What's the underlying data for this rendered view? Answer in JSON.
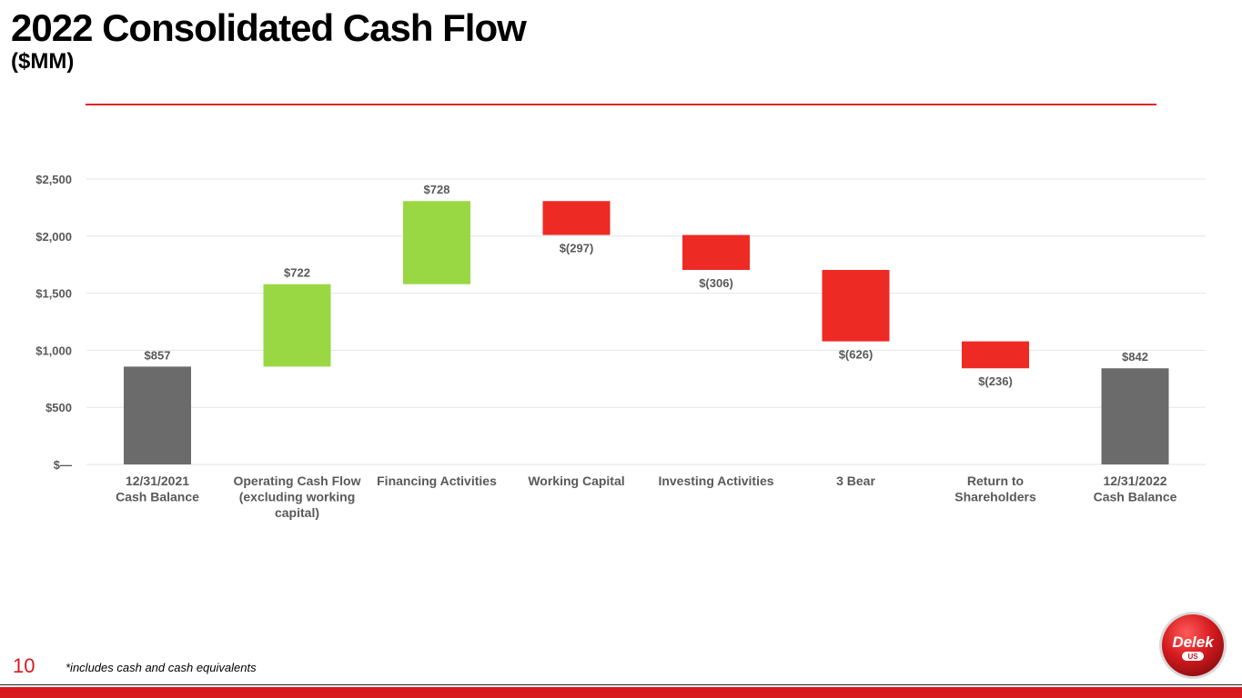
{
  "slide": {
    "title": "2022 Consolidated Cash Flow",
    "subtitle": "($MM)",
    "page_number": "10",
    "footnote": "*includes cash and cash equivalents",
    "logo_text": "Delek",
    "logo_subtext": "US"
  },
  "colors": {
    "accent": "#e0252a",
    "total": "#6b6b6b",
    "increase": "#99d843",
    "decrease": "#ee2a24",
    "grid": "#e6e6e6",
    "label": "#595959"
  },
  "chart_data": {
    "type": "bar",
    "subtype": "waterfall",
    "title": "2022 Consolidated Cash Flow",
    "ylabel": "$MM",
    "ylim": [
      0,
      2500
    ],
    "yticks": [
      0,
      500,
      1000,
      1500,
      2000,
      2500
    ],
    "ytick_labels": [
      "$—",
      "$500",
      "$1,000",
      "$1,500",
      "$2,000",
      "$2,500"
    ],
    "grid": true,
    "categories": [
      [
        "12/31/2021",
        "Cash Balance"
      ],
      [
        "Operating Cash Flow",
        "(excluding working",
        "capital)"
      ],
      [
        "Financing Activities"
      ],
      [
        "Working Capital"
      ],
      [
        "Investing Activities"
      ],
      [
        "3 Bear"
      ],
      [
        "Return to",
        "Shareholders"
      ],
      [
        "12/31/2022",
        "Cash Balance"
      ]
    ],
    "values": [
      857,
      722,
      728,
      -297,
      -306,
      -626,
      -236,
      842
    ],
    "kinds": [
      "total",
      "increase",
      "increase",
      "decrease",
      "decrease",
      "decrease",
      "decrease",
      "total"
    ],
    "data_labels": [
      "$857",
      "$722",
      "$728",
      "$(297)",
      "$(306)",
      "$(626)",
      "$(236)",
      "$842"
    ]
  }
}
